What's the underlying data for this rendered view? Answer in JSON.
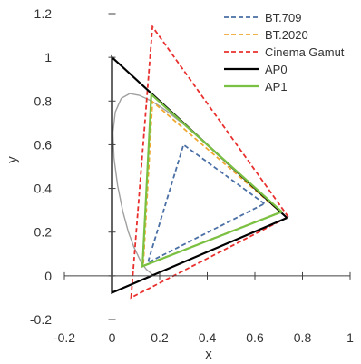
{
  "chart_data": {
    "type": "line",
    "xlabel": "x",
    "ylabel": "y",
    "xlim": [
      -0.2,
      1.0
    ],
    "ylim": [
      -0.2,
      1.2
    ],
    "xticks": [
      -0.2,
      0,
      0.2,
      0.4,
      0.6,
      0.8,
      1
    ],
    "yticks": [
      -0.2,
      0,
      0.2,
      0.4,
      0.6,
      0.8,
      1,
      1.2
    ],
    "xtick_labels": [
      "-0.2",
      "0",
      "0.2",
      "0.4",
      "0.6",
      "0.8",
      "1"
    ],
    "ytick_labels": [
      "-0.2",
      "0",
      "0.2",
      "0.4",
      "0.6",
      "0.8",
      "1",
      "1.2"
    ],
    "grid": false,
    "legend_position": "top-right",
    "spectral_locus": {
      "color": "#a0a0a0",
      "x": [
        0.1741,
        0.1738,
        0.1714,
        0.1666,
        0.144,
        0.1241,
        0.0913,
        0.0687,
        0.0454,
        0.0235,
        0.0082,
        0.0039,
        0.0139,
        0.0389,
        0.0743,
        0.1142,
        0.1547,
        0.1929,
        0.2296,
        0.3016,
        0.3731,
        0.4441,
        0.5125,
        0.5752,
        0.627,
        0.6658,
        0.6915,
        0.7079,
        0.7347,
        0.1741
      ],
      "y": [
        0.005,
        0.005,
        0.0051,
        0.0089,
        0.0297,
        0.0578,
        0.1327,
        0.2007,
        0.295,
        0.4127,
        0.5384,
        0.6548,
        0.7502,
        0.812,
        0.8338,
        0.8262,
        0.8059,
        0.7816,
        0.7543,
        0.6923,
        0.6245,
        0.5547,
        0.4866,
        0.4242,
        0.3725,
        0.334,
        0.3083,
        0.292,
        0.2653,
        0.005
      ]
    },
    "series": [
      {
        "name": "BT.709",
        "color": "#4a6fa5",
        "dash": "dashed",
        "x": [
          0.64,
          0.3,
          0.15,
          0.64
        ],
        "y": [
          0.33,
          0.6,
          0.06,
          0.33
        ]
      },
      {
        "name": "BT.2020",
        "color": "#f0a830",
        "dash": "dashed",
        "x": [
          0.708,
          0.17,
          0.131,
          0.708
        ],
        "y": [
          0.292,
          0.797,
          0.046,
          0.292
        ]
      },
      {
        "name": "Cinema Gamut",
        "color": "#e8302e",
        "dash": "dashed",
        "x": [
          0.74,
          0.17,
          0.08,
          0.74
        ],
        "y": [
          0.27,
          1.14,
          -0.1,
          0.27
        ]
      },
      {
        "name": "AP0",
        "color": "#000000",
        "dash": "solid",
        "x": [
          0.7347,
          0.0,
          0.0001,
          0.7347
        ],
        "y": [
          0.2653,
          1.0,
          -0.077,
          0.2653
        ]
      },
      {
        "name": "AP1",
        "color": "#7ac143",
        "dash": "solid",
        "x": [
          0.713,
          0.165,
          0.128,
          0.713
        ],
        "y": [
          0.293,
          0.83,
          0.044,
          0.293
        ]
      }
    ]
  }
}
